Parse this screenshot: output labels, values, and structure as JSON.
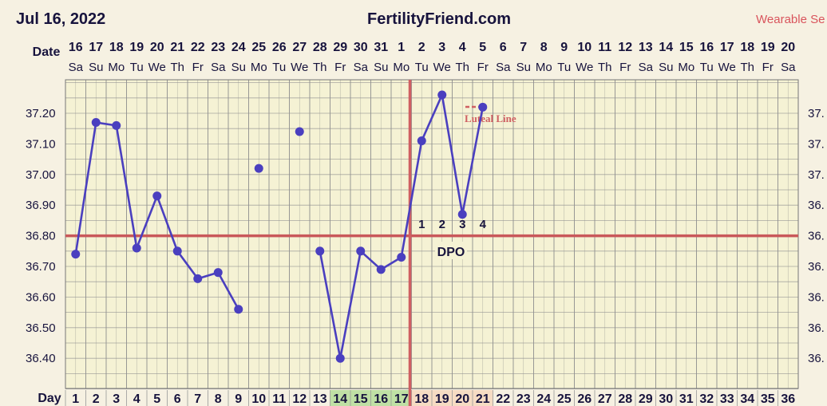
{
  "header": {
    "date": "Jul 16, 2022",
    "site": "FertilityFriend.com",
    "wearable": "Wearable Se"
  },
  "colors": {
    "background": "#f6f1e2",
    "plot_background": "#f5f2d4",
    "grid": "#8f8f8f",
    "line": "#4a3fbf",
    "coverline": "#c9585a",
    "ovulation": "#cf5f62",
    "fertile_day": "#bfe0a4",
    "post_ovulation_day": "#f6dcc3",
    "text": "#17133d"
  },
  "chart_data": {
    "type": "line",
    "row_labels": {
      "date": "Date",
      "day": "Day"
    },
    "dates": [
      "16",
      "17",
      "18",
      "19",
      "20",
      "21",
      "22",
      "23",
      "24",
      "25",
      "26",
      "27",
      "28",
      "29",
      "30",
      "31",
      "1",
      "2",
      "3",
      "4",
      "5",
      "6",
      "7",
      "8",
      "9",
      "10",
      "11",
      "12",
      "13",
      "14",
      "15",
      "16",
      "17",
      "18",
      "19",
      "20"
    ],
    "weekdays": [
      "Sa",
      "Su",
      "Mo",
      "Tu",
      "We",
      "Th",
      "Fr",
      "Sa",
      "Su",
      "Mo",
      "Tu",
      "We",
      "Th",
      "Fr",
      "Sa",
      "Su",
      "Mo",
      "Tu",
      "We",
      "Th",
      "Fr",
      "Sa",
      "Su",
      "Mo",
      "Tu",
      "We",
      "Th",
      "Fr",
      "Sa",
      "Su",
      "Mo",
      "Tu",
      "We",
      "Th",
      "Fr",
      "Sa"
    ],
    "days": [
      "1",
      "2",
      "3",
      "4",
      "5",
      "6",
      "7",
      "8",
      "9",
      "10",
      "11",
      "12",
      "13",
      "14",
      "15",
      "16",
      "17",
      "18",
      "19",
      "20",
      "21",
      "22",
      "23",
      "24",
      "25",
      "26",
      "27",
      "28",
      "29",
      "30",
      "31",
      "32",
      "33",
      "34",
      "35",
      "36"
    ],
    "fertile_days": [
      14,
      15,
      16,
      17
    ],
    "post_ovulation_days": [
      18,
      19,
      20,
      21
    ],
    "ylim": [
      36.3,
      37.35
    ],
    "yticks": [
      "37.20",
      "37.10",
      "37.00",
      "36.90",
      "36.80",
      "36.70",
      "36.60",
      "36.50",
      "36.40"
    ],
    "right_ticks": [
      "37.",
      "37.",
      "37.",
      "36.",
      "36.",
      "36.",
      "36.",
      "36.",
      "36."
    ],
    "temperatures": [
      {
        "day": 1,
        "value": 36.74,
        "connected": true
      },
      {
        "day": 2,
        "value": 37.17,
        "connected": true
      },
      {
        "day": 3,
        "value": 37.16,
        "connected": true
      },
      {
        "day": 4,
        "value": 36.76,
        "connected": true
      },
      {
        "day": 5,
        "value": 36.93,
        "connected": true
      },
      {
        "day": 6,
        "value": 36.75,
        "connected": true
      },
      {
        "day": 7,
        "value": 36.66,
        "connected": true
      },
      {
        "day": 8,
        "value": 36.68,
        "connected": true
      },
      {
        "day": 9,
        "value": 36.56,
        "connected": true
      },
      {
        "day": 10,
        "value": 37.02,
        "connected": false
      },
      {
        "day": 12,
        "value": 37.14,
        "connected": false
      },
      {
        "day": 13,
        "value": 36.75,
        "connected": true
      },
      {
        "day": 14,
        "value": 36.4,
        "connected": true
      },
      {
        "day": 15,
        "value": 36.75,
        "connected": true
      },
      {
        "day": 16,
        "value": 36.69,
        "connected": true
      },
      {
        "day": 17,
        "value": 36.73,
        "connected": true
      },
      {
        "day": 18,
        "value": 37.11,
        "connected": true
      },
      {
        "day": 19,
        "value": 37.26,
        "connected": true
      },
      {
        "day": 20,
        "value": 36.87,
        "connected": true
      },
      {
        "day": 21,
        "value": 37.22,
        "connected": true
      }
    ],
    "dashed_segment": [
      9,
      13
    ],
    "coverline": 36.8,
    "ovulation_day": 17,
    "dpo": {
      "label": "DPO",
      "numbers": [
        "1",
        "2",
        "3",
        "4"
      ],
      "start_day": 18
    },
    "luteal_label": "Luteal Line"
  }
}
